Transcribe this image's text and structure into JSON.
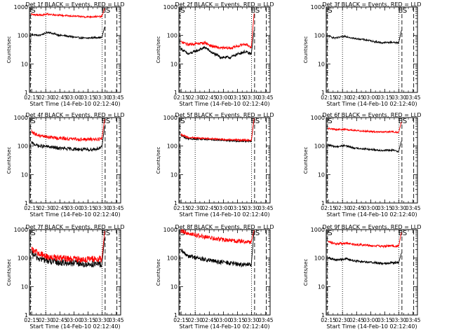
{
  "figure": {
    "xaxis_label": "Start Time (14-Feb-10 02:12:40)",
    "yaxis_label": "Counts/sec",
    "x_tick_labels": [
      "02:15",
      "02:30",
      "02:45",
      "03:00",
      "03:15",
      "03:30",
      "03:45"
    ],
    "y_tick_labels": [
      "1",
      "10",
      "100",
      "1000"
    ],
    "marker_left": "S",
    "marker_right": "ES",
    "colors": {
      "events": "#000000",
      "lld": "#ff0000"
    }
  },
  "chart_data": [
    {
      "type": "line",
      "title": "Det 1f BLACK = Events, RED = LLD",
      "xlabel": "Start Time (14-Feb-10 02:12:40)",
      "ylabel": "Counts/sec",
      "x_unit": "minutes after 02:12:40",
      "xlim": [
        0,
        97
      ],
      "ylim": [
        1,
        1000
      ],
      "yscale": "log",
      "x": [
        2,
        10,
        20,
        30,
        40,
        50,
        60,
        70,
        77,
        80
      ],
      "series": [
        {
          "name": "Events",
          "color": "#000000",
          "values": [
            110,
            100,
            130,
            105,
            95,
            85,
            80,
            85,
            85,
            200
          ]
        },
        {
          "name": "LLD",
          "color": "#ff0000",
          "values": [
            550,
            520,
            560,
            520,
            490,
            470,
            450,
            460,
            460,
            900
          ]
        }
      ],
      "noise": 0.03,
      "vlines": [
        {
          "x": 1,
          "style": "dashed"
        },
        {
          "x": 17.3,
          "style": "dotted"
        },
        {
          "x": 77.3,
          "style": "dotted"
        },
        {
          "x": 80.5,
          "style": "dashed"
        },
        {
          "x": 93,
          "style": "dashed"
        }
      ]
    },
    {
      "type": "line",
      "title": "Det 2f BLACK = Events, RED = LLD",
      "xlabel": "Start Time (14-Feb-10 02:12:40)",
      "ylabel": "Counts/sec",
      "x_unit": "minutes after 02:12:40",
      "xlim": [
        0,
        97
      ],
      "ylim": [
        1,
        1000
      ],
      "yscale": "log",
      "x": [
        2,
        10,
        20,
        28,
        35,
        45,
        55,
        62,
        70,
        77,
        80
      ],
      "series": [
        {
          "name": "Events",
          "color": "#000000",
          "values": [
            35,
            22,
            30,
            38,
            25,
            17,
            17,
            22,
            27,
            22,
            150
          ]
        },
        {
          "name": "LLD",
          "color": "#ff0000",
          "values": [
            60,
            48,
            52,
            55,
            42,
            36,
            36,
            42,
            50,
            40,
            600
          ]
        }
      ],
      "noise": 0.05,
      "vlines": [
        {
          "x": 1,
          "style": "dashed"
        },
        {
          "x": 17.3,
          "style": "dotted"
        },
        {
          "x": 77.3,
          "style": "dotted"
        },
        {
          "x": 80.5,
          "style": "dashed"
        },
        {
          "x": 93,
          "style": "dashed"
        }
      ]
    },
    {
      "type": "line",
      "title": "Det 3f BLACK = Events, RED = LLD",
      "xlabel": "Start Time (14-Feb-10 02:12:40)",
      "ylabel": "Counts/sec",
      "x_unit": "minutes after 02:12:40",
      "xlim": [
        0,
        97
      ],
      "ylim": [
        1,
        1000
      ],
      "yscale": "log",
      "x": [
        2,
        10,
        20,
        30,
        40,
        50,
        60,
        70,
        77,
        80
      ],
      "series": [
        {
          "name": "Events",
          "color": "#000000",
          "values": [
            95,
            80,
            95,
            78,
            72,
            62,
            55,
            58,
            55,
            150
          ]
        }
      ],
      "noise": 0.03,
      "vlines": [
        {
          "x": 1,
          "style": "dashed"
        },
        {
          "x": 17.3,
          "style": "dotted"
        },
        {
          "x": 77.3,
          "style": "dotted"
        },
        {
          "x": 80.5,
          "style": "dashed"
        },
        {
          "x": 93,
          "style": "dashed"
        }
      ]
    },
    {
      "type": "line",
      "title": "Det 4f BLACK = Events, RED = LLD",
      "xlabel": "Start Time (14-Feb-10 02:12:40)",
      "ylabel": "Counts/sec",
      "x_unit": "minutes after 02:12:40",
      "xlim": [
        0,
        97
      ],
      "ylim": [
        1,
        1000
      ],
      "yscale": "log",
      "x": [
        2,
        10,
        20,
        30,
        40,
        50,
        60,
        70,
        77,
        80
      ],
      "series": [
        {
          "name": "Events",
          "color": "#000000",
          "values": [
            130,
            100,
            95,
            85,
            80,
            78,
            75,
            78,
            90,
            500
          ]
        },
        {
          "name": "LLD",
          "color": "#ff0000",
          "values": [
            320,
            230,
            210,
            190,
            180,
            175,
            170,
            175,
            180,
            900
          ]
        }
      ],
      "noise": 0.06,
      "vlines": [
        {
          "x": 1,
          "style": "dashed"
        },
        {
          "x": 17.3,
          "style": "dotted"
        },
        {
          "x": 77.3,
          "style": "dotted"
        },
        {
          "x": 80.5,
          "style": "dashed"
        },
        {
          "x": 93,
          "style": "dashed"
        }
      ]
    },
    {
      "type": "line",
      "title": "Det 5f BLACK = Events, RED = LLD",
      "xlabel": "Start Time (14-Feb-10 02:12:40)",
      "ylabel": "Counts/sec",
      "x_unit": "minutes after 02:12:40",
      "xlim": [
        0,
        97
      ],
      "ylim": [
        1,
        1000
      ],
      "yscale": "log",
      "x": [
        2,
        10,
        20,
        30,
        40,
        50,
        60,
        70,
        77,
        80
      ],
      "series": [
        {
          "name": "Events",
          "color": "#000000",
          "values": [
            230,
            180,
            175,
            170,
            165,
            158,
            152,
            150,
            150,
            900
          ]
        },
        {
          "name": "LLD",
          "color": "#ff0000",
          "values": [
            260,
            200,
            190,
            185,
            178,
            170,
            165,
            162,
            160,
            950
          ]
        }
      ],
      "noise": 0.03,
      "vlines": [
        {
          "x": 1,
          "style": "dashed"
        },
        {
          "x": 17.3,
          "style": "dotted"
        },
        {
          "x": 77.3,
          "style": "dotted"
        },
        {
          "x": 80.5,
          "style": "dashed"
        },
        {
          "x": 93,
          "style": "dashed"
        }
      ]
    },
    {
      "type": "line",
      "title": "Det 6f BLACK = Events, RED = LLD",
      "xlabel": "Start Time (14-Feb-10 02:12:40)",
      "ylabel": "Counts/sec",
      "x_unit": "minutes after 02:12:40",
      "xlim": [
        0,
        97
      ],
      "ylim": [
        1,
        1000
      ],
      "yscale": "log",
      "x": [
        2,
        10,
        20,
        30,
        40,
        50,
        60,
        70,
        77,
        80
      ],
      "series": [
        {
          "name": "Events",
          "color": "#000000",
          "values": [
            110,
            95,
            105,
            85,
            80,
            75,
            70,
            72,
            65,
            150
          ]
        },
        {
          "name": "LLD",
          "color": "#ff0000",
          "values": [
            420,
            380,
            390,
            350,
            340,
            320,
            310,
            320,
            300,
            700
          ]
        }
      ],
      "noise": 0.03,
      "vlines": [
        {
          "x": 1,
          "style": "dashed"
        },
        {
          "x": 17.3,
          "style": "dotted"
        },
        {
          "x": 77.3,
          "style": "dotted"
        },
        {
          "x": 80.5,
          "style": "dashed"
        },
        {
          "x": 93,
          "style": "dashed"
        }
      ]
    },
    {
      "type": "line",
      "title": "Det 7f BLACK = Events, RED = LLD",
      "xlabel": "Start Time (14-Feb-10 02:12:40)",
      "ylabel": "Counts/sec",
      "x_unit": "minutes after 02:12:40",
      "xlim": [
        0,
        97
      ],
      "ylim": [
        1,
        1000
      ],
      "yscale": "log",
      "x": [
        2,
        10,
        20,
        30,
        40,
        50,
        60,
        70,
        77,
        80
      ],
      "series": [
        {
          "name": "Events",
          "color": "#000000",
          "values": [
            150,
            95,
            80,
            70,
            68,
            65,
            60,
            62,
            60,
            500
          ]
        },
        {
          "name": "LLD",
          "color": "#ff0000",
          "values": [
            210,
            140,
            110,
            100,
            95,
            92,
            90,
            92,
            90,
            900
          ]
        }
      ],
      "noise": 0.12,
      "vlines": [
        {
          "x": 1,
          "style": "dashed"
        },
        {
          "x": 17.3,
          "style": "dotted"
        },
        {
          "x": 77.3,
          "style": "dotted"
        },
        {
          "x": 80.5,
          "style": "dashed"
        },
        {
          "x": 93,
          "style": "dashed"
        }
      ]
    },
    {
      "type": "line",
      "title": "Det 8f BLACK = Events, RED = LLD",
      "xlabel": "Start Time (14-Feb-10 02:12:40)",
      "ylabel": "Counts/sec",
      "x_unit": "minutes after 02:12:40",
      "xlim": [
        0,
        97
      ],
      "ylim": [
        1,
        1000
      ],
      "yscale": "log",
      "x": [
        2,
        10,
        20,
        30,
        40,
        50,
        60,
        70,
        77,
        80
      ],
      "series": [
        {
          "name": "Events",
          "color": "#000000",
          "values": [
            180,
            120,
            100,
            85,
            75,
            70,
            62,
            58,
            60,
            900
          ]
        },
        {
          "name": "LLD",
          "color": "#ff0000",
          "values": [
            900,
            750,
            620,
            530,
            470,
            430,
            400,
            380,
            370,
            950
          ]
        }
      ],
      "noise": 0.08,
      "vlines": [
        {
          "x": 1,
          "style": "dashed"
        },
        {
          "x": 17.3,
          "style": "dotted"
        },
        {
          "x": 77.3,
          "style": "dotted"
        },
        {
          "x": 80.5,
          "style": "dashed"
        },
        {
          "x": 93,
          "style": "dashed"
        }
      ]
    },
    {
      "type": "line",
      "title": "Det 9f BLACK = Events, RED = LLD",
      "xlabel": "Start Time (14-Feb-10 02:12:40)",
      "ylabel": "Counts/sec",
      "x_unit": "minutes after 02:12:40",
      "xlim": [
        0,
        97
      ],
      "ylim": [
        1,
        1000
      ],
      "yscale": "log",
      "x": [
        2,
        10,
        20,
        30,
        40,
        50,
        60,
        70,
        77,
        80
      ],
      "series": [
        {
          "name": "Events",
          "color": "#000000",
          "values": [
            105,
            85,
            95,
            80,
            75,
            70,
            65,
            70,
            68,
            150
          ]
        },
        {
          "name": "LLD",
          "color": "#ff0000",
          "values": [
            380,
            320,
            330,
            300,
            290,
            270,
            260,
            270,
            260,
            800
          ]
        }
      ],
      "noise": 0.04,
      "vlines": [
        {
          "x": 1,
          "style": "dashed"
        },
        {
          "x": 17.3,
          "style": "dotted"
        },
        {
          "x": 77.3,
          "style": "dotted"
        },
        {
          "x": 80.5,
          "style": "dashed"
        },
        {
          "x": 93,
          "style": "dashed"
        }
      ]
    }
  ]
}
